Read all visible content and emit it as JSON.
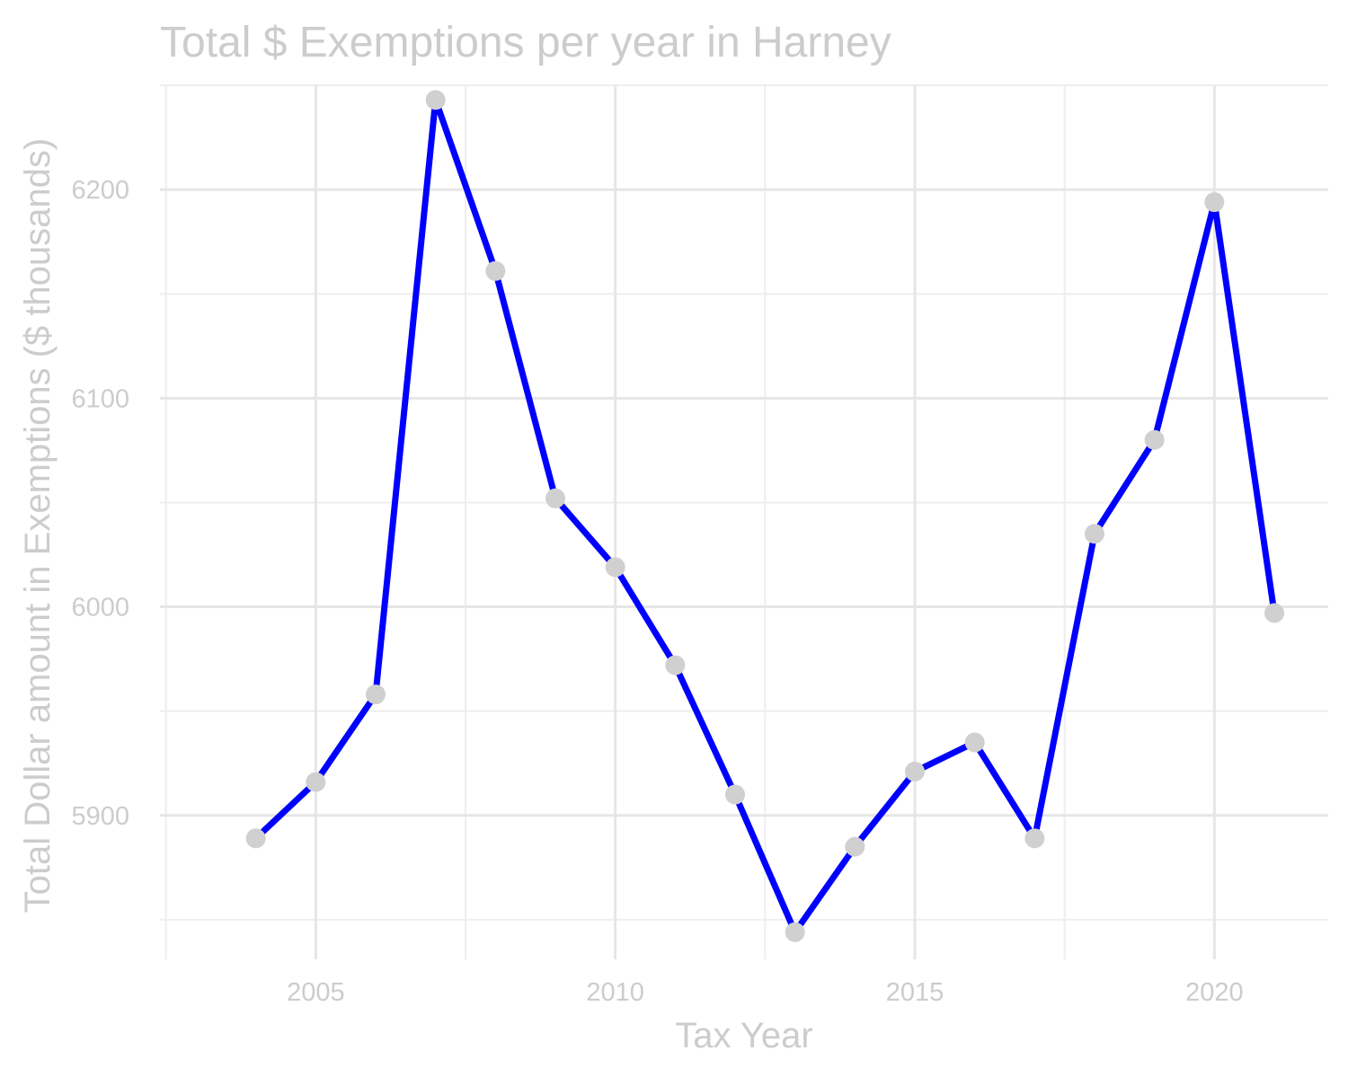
{
  "chart_data": {
    "type": "line",
    "title": "Total $ Exemptions per year in Harney",
    "xlabel": "Tax Year",
    "ylabel": "Total Dollar amount in Exemptions ($ thousands)",
    "x": [
      2004,
      2005,
      2006,
      2007,
      2008,
      2009,
      2010,
      2011,
      2012,
      2013,
      2014,
      2015,
      2016,
      2017,
      2018,
      2019,
      2020,
      2021
    ],
    "series": [
      {
        "values": [
          5889,
          5916,
          5958,
          6243,
          6161,
          6052,
          6019,
          5972,
          5910,
          5844,
          5885,
          5921,
          5935,
          5889,
          6035,
          6080,
          6194,
          5997
        ],
        "line_color": "#0000ff",
        "point_color": "#d0d0d0"
      }
    ],
    "xlim": [
      2002.4,
      2021.9
    ],
    "ylim": [
      5831,
      6250
    ],
    "x_ticks": [
      2005,
      2010,
      2015,
      2020
    ],
    "x_tick_labels": [
      "2005",
      "2010",
      "2015",
      "2020"
    ],
    "y_ticks": [
      5900,
      6000,
      6100,
      6200
    ],
    "y_tick_labels": [
      "5900",
      "6000",
      "6100",
      "6200"
    ],
    "x_minor_ticks": [
      2002.5,
      2007.5,
      2012.5,
      2017.5
    ],
    "y_minor_ticks": [
      5850,
      5950,
      6050,
      6150,
      6250
    ],
    "grid": true,
    "legend": "none"
  }
}
